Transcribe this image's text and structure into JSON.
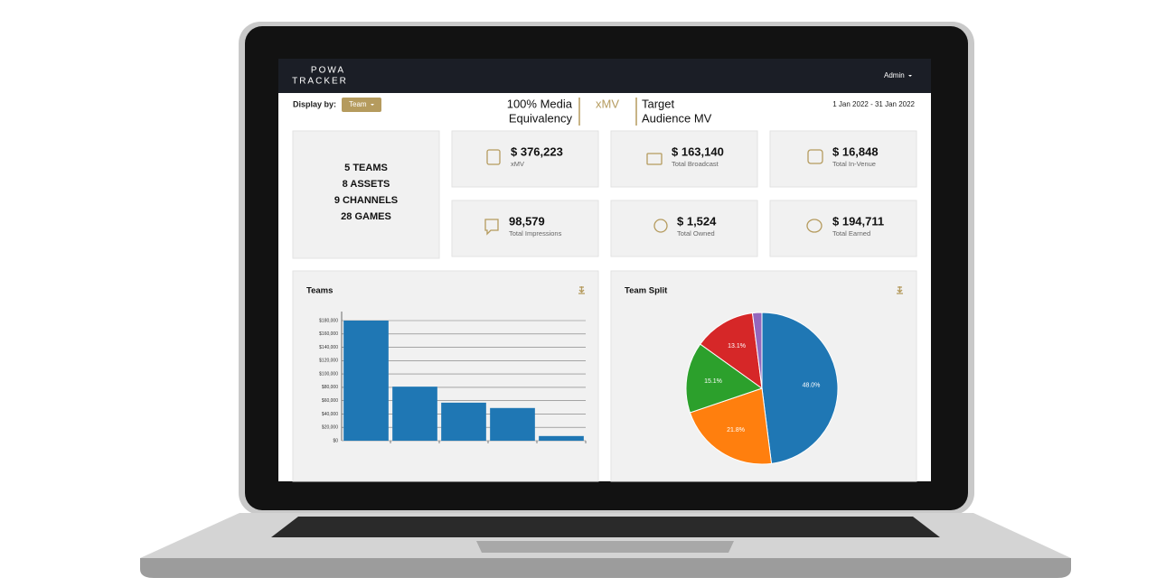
{
  "header": {
    "logo_top": "POWA",
    "logo_bottom": "TRACKER",
    "user": "Admin"
  },
  "toolbar": {
    "display_by": "Display by:",
    "team_button": "Team",
    "tabs": [
      {
        "lines": [
          "100% Media",
          "Equivalency"
        ]
      },
      {
        "lines": [
          "xMV"
        ]
      },
      {
        "lines": [
          "Target",
          "Audience MV"
        ]
      }
    ],
    "date_range": "1 Jan 2022 - 31 Jan 2022"
  },
  "summary": [
    "5 TEAMS",
    "8 ASSETS",
    "9 CHANNELS",
    "28 GAMES"
  ],
  "kpis": [
    {
      "value": "$ 376,223",
      "label": "xMV"
    },
    {
      "value": "$ 163,140",
      "label": "Total Broadcast"
    },
    {
      "value": "$ 16,848",
      "label": "Total In-Venue"
    },
    {
      "value": "98,579",
      "label": "Total Impressions"
    },
    {
      "value": "$ 1,524",
      "label": "Total Owned"
    },
    {
      "value": "$ 194,711",
      "label": "Total Earned"
    }
  ],
  "chart_data": [
    {
      "type": "bar",
      "title": "Teams",
      "values": [
        180000,
        81000,
        57000,
        49000,
        7000
      ],
      "color": "#1f77b4",
      "ylim": [
        0,
        180000
      ],
      "yticks": [
        {
          "value": 0,
          "label": "$0"
        },
        {
          "value": 20000,
          "label": "$20,000"
        },
        {
          "value": 40000,
          "label": "$40,000"
        },
        {
          "value": 60000,
          "label": "$60,000"
        },
        {
          "value": 80000,
          "label": "$80,000"
        },
        {
          "value": 100000,
          "label": "$100,000"
        },
        {
          "value": 120000,
          "label": "$120,000"
        },
        {
          "value": 140000,
          "label": "$140,000"
        },
        {
          "value": 160000,
          "label": "$160,000"
        },
        {
          "value": 180000,
          "label": "$180,000"
        }
      ],
      "grid": true
    },
    {
      "type": "pie",
      "title": "Team Split",
      "values": [
        48.0,
        21.8,
        15.1,
        13.1,
        2.0
      ],
      "value_labels": [
        "48.0%",
        "21.8%",
        "15.1%",
        "13.1%",
        null
      ],
      "colors": [
        "#1f77b4",
        "#ff7f0e",
        "#2ca02c",
        "#d62728",
        "#9467bd"
      ]
    }
  ]
}
